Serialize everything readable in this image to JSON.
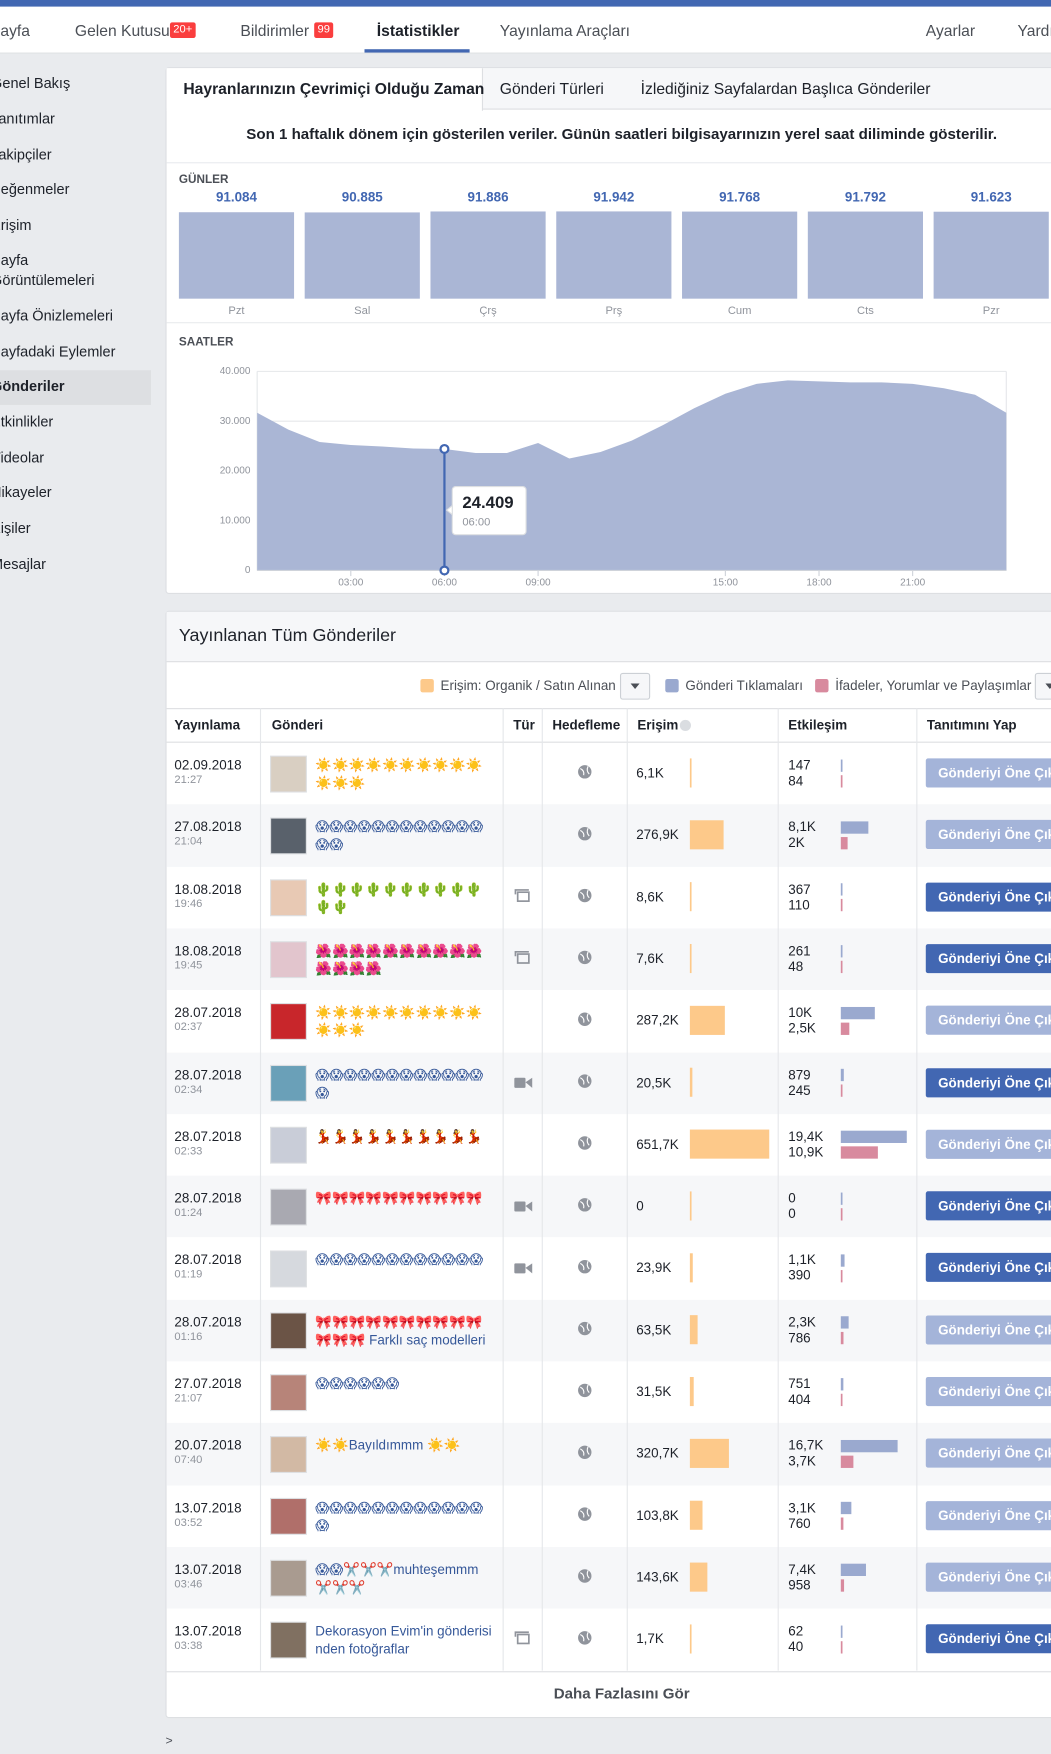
{
  "nav": {
    "items": [
      {
        "label": "Sayfa"
      },
      {
        "label": "Gelen Kutusu",
        "badge": "20+"
      },
      {
        "label": "Bildirimler",
        "badge": "99"
      },
      {
        "label": "İstatistikler",
        "active": true
      },
      {
        "label": "Yayınlama Araçları"
      },
      {
        "label": "Ayarlar"
      },
      {
        "label": "Yardım"
      }
    ]
  },
  "sidebar": {
    "items": [
      "Genel Bakış",
      "Tanıtımlar",
      "Takipçiler",
      "Beğenmeler",
      "Erişim",
      "Sayfa Görüntülemeleri",
      "Sayfa Önizlemeleri",
      "Sayfadaki Eylemler",
      "Gönderiler",
      "Etkinlikler",
      "Videolar",
      "Hikayeler",
      "Kişiler",
      "Mesajlar"
    ],
    "active": 8
  },
  "tabs": {
    "items": [
      "Hayranlarınızın Çevrimiçi Olduğu Zaman",
      "Gönderi Türleri",
      "İzlediğiniz Sayfalardan Başlıca Gönderiler"
    ],
    "active": 0
  },
  "notice": "Son 1 haftalık dönem için gösterilen veriler. Günün saatleri bilgisayarınızın yerel saat diliminde gösterilir.",
  "days_chart": {
    "type": "bar",
    "label": "GÜNLER",
    "categories": [
      "Pzt",
      "Sal",
      "Çrş",
      "Prş",
      "Cum",
      "Cts",
      "Pzr"
    ],
    "values": [
      91084,
      90885,
      91886,
      91942,
      91768,
      91792,
      91623
    ],
    "value_labels": [
      "91.084",
      "90.885",
      "91.886",
      "91.942",
      "91.768",
      "91.792",
      "91.623"
    ],
    "color": "#aab6d5"
  },
  "hours_chart": {
    "type": "area",
    "label": "SAATLER",
    "x": [
      0,
      1,
      2,
      3,
      4,
      5,
      6,
      7,
      8,
      9,
      10,
      11,
      12,
      13,
      14,
      15,
      16,
      17,
      18,
      19,
      20,
      21,
      22,
      23,
      24
    ],
    "values": [
      31700,
      28300,
      25800,
      25200,
      24900,
      24500,
      24409,
      23600,
      23600,
      25600,
      22500,
      23800,
      26100,
      29200,
      32600,
      35500,
      37500,
      38200,
      38000,
      37800,
      37800,
      37500,
      36600,
      35300,
      31700
    ],
    "color": "#aab6d5",
    "xlim": [
      0,
      24
    ],
    "ylim": [
      0,
      40000
    ],
    "yticks": [
      0,
      {
        "value": 10000,
        "label": "10.000"
      },
      {
        "value": 20000,
        "label": "20.000"
      },
      {
        "value": 30000,
        "label": "30.000"
      },
      {
        "value": 40000,
        "label": "40.000"
      }
    ],
    "xticks": [
      {
        "value": 3,
        "label": "03:00"
      },
      {
        "value": 6,
        "label": "06:00"
      },
      {
        "value": 9,
        "label": "09:00"
      },
      {
        "value": 15,
        "label": "15:00"
      },
      {
        "value": 18,
        "label": "18:00"
      },
      {
        "value": 21,
        "label": "21:00"
      }
    ],
    "grid": true,
    "tooltip": {
      "index": 6,
      "value_label": "24.409",
      "label": "06:00"
    }
  },
  "posts": {
    "title": "Yayınlanan Tüm Gönderiler",
    "legend": [
      {
        "label": "Erişim: Organik / Satın Alınan",
        "color": "#fdc98a"
      },
      {
        "label": "Gönderi Tıklamaları",
        "color": "#9aa9cf"
      },
      {
        "label": "İfadeler, Yorumlar ve Paylaşımlar",
        "color": "#d88a9e"
      }
    ],
    "columns": [
      "Yayınlama",
      "Gönderi",
      "Tür",
      "Hedefleme",
      "Erişim",
      "Etkileşim",
      "Tanıtımını Yap"
    ],
    "button_label": "Gönderiyi Öne Çıkar",
    "rows": [
      {
        "date": "02.09.2018",
        "time": "21:27",
        "text": "☀️☀️☀️☀️☀️☀️☀️☀️☀️☀️☀️☀️☀️",
        "type": null,
        "reach": 6100,
        "reach_label": "6,1K",
        "clicks": 147,
        "clicks_label": "147",
        "reactions": 84,
        "reactions_label": "84",
        "button_enabled": false
      },
      {
        "date": "27.08.2018",
        "time": "21:04",
        "text": "😱😱😱😱😱😱😱😱😱😱😱😱😱😱",
        "type": null,
        "reach": 276900,
        "reach_label": "276,9K",
        "clicks": 8100,
        "clicks_label": "8,1K",
        "reactions": 2000,
        "reactions_label": "2K",
        "button_enabled": false
      },
      {
        "date": "18.08.2018",
        "time": "19:46",
        "text": "🌵🌵🌵🌵🌵🌵🌵🌵🌵🌵🌵🌵",
        "type": "album",
        "reach": 8600,
        "reach_label": "8,6K",
        "clicks": 367,
        "clicks_label": "367",
        "reactions": 110,
        "reactions_label": "110",
        "button_enabled": true
      },
      {
        "date": "18.08.2018",
        "time": "19:45",
        "text": "🌺🌺🌺🌺🌺🌺🌺🌺🌺🌺🌺🌺🌺🌺",
        "type": "album",
        "reach": 7600,
        "reach_label": "7,6K",
        "clicks": 261,
        "clicks_label": "261",
        "reactions": 48,
        "reactions_label": "48",
        "button_enabled": true
      },
      {
        "date": "28.07.2018",
        "time": "02:37",
        "text": "☀️☀️☀️☀️☀️☀️☀️☀️☀️☀️☀️☀️☀️",
        "type": null,
        "reach": 287200,
        "reach_label": "287,2K",
        "clicks": 10000,
        "clicks_label": "10K",
        "reactions": 2500,
        "reactions_label": "2,5K",
        "button_enabled": false
      },
      {
        "date": "28.07.2018",
        "time": "02:34",
        "text": "😱😱😱😱😱😱😱😱😱😱😱😱😱",
        "type": "video",
        "reach": 20500,
        "reach_label": "20,5K",
        "clicks": 879,
        "clicks_label": "879",
        "reactions": 245,
        "reactions_label": "245",
        "button_enabled": true
      },
      {
        "date": "28.07.2018",
        "time": "02:33",
        "text": "💃💃💃💃💃💃💃💃💃💃",
        "type": null,
        "reach": 651700,
        "reach_label": "651,7K",
        "clicks": 19400,
        "clicks_label": "19,4K",
        "reactions": 10900,
        "reactions_label": "10,9K",
        "button_enabled": false
      },
      {
        "date": "28.07.2018",
        "time": "01:24",
        "text": "🎀🎀🎀🎀🎀🎀🎀🎀🎀🎀",
        "type": "video",
        "reach": 0,
        "reach_label": "0",
        "clicks": 0,
        "clicks_label": "0",
        "reactions": 0,
        "reactions_label": "0",
        "button_enabled": true
      },
      {
        "date": "28.07.2018",
        "time": "01:19",
        "text": "😱😱😱😱😱😱😱😱😱😱😱😱",
        "type": "video",
        "reach": 23900,
        "reach_label": "23,9K",
        "clicks": 1100,
        "clicks_label": "1,1K",
        "reactions": 390,
        "reactions_label": "390",
        "button_enabled": true
      },
      {
        "date": "28.07.2018",
        "time": "01:16",
        "text": "🎀🎀🎀🎀🎀🎀🎀🎀🎀🎀🎀🎀🎀 Farklı saç modelleri",
        "type": null,
        "reach": 63500,
        "reach_label": "63,5K",
        "clicks": 2300,
        "clicks_label": "2,3K",
        "reactions": 786,
        "reactions_label": "786",
        "button_enabled": false
      },
      {
        "date": "27.07.2018",
        "time": "21:07",
        "text": "😱😱😱😱😱😱",
        "type": null,
        "reach": 31500,
        "reach_label": "31,5K",
        "clicks": 751,
        "clicks_label": "751",
        "reactions": 404,
        "reactions_label": "404",
        "button_enabled": false
      },
      {
        "date": "20.07.2018",
        "time": "07:40",
        "text": "☀️☀️Bayıldımmm ☀️☀️",
        "type": null,
        "reach": 320700,
        "reach_label": "320,7K",
        "clicks": 16700,
        "clicks_label": "16,7K",
        "reactions": 3700,
        "reactions_label": "3,7K",
        "button_enabled": false
      },
      {
        "date": "13.07.2018",
        "time": "03:52",
        "text": "😱😱😱😱😱😱😱😱😱😱😱😱😱",
        "type": null,
        "reach": 103800,
        "reach_label": "103,8K",
        "clicks": 3100,
        "clicks_label": "3,1K",
        "reactions": 760,
        "reactions_label": "760",
        "button_enabled": false
      },
      {
        "date": "13.07.2018",
        "time": "03:46",
        "text": "😱😱✂️✂️✂️muhteşemmm✂️✂️✂️",
        "type": null,
        "reach": 143600,
        "reach_label": "143,6K",
        "clicks": 7400,
        "clicks_label": "7,4K",
        "reactions": 958,
        "reactions_label": "958",
        "button_enabled": false
      },
      {
        "date": "13.07.2018",
        "time": "03:38",
        "text": "Dekorasyon Evim'in gönderisinden fotoğraflar",
        "type": "album",
        "reach": 1700,
        "reach_label": "1,7K",
        "clicks": 62,
        "clicks_label": "62",
        "reactions": 40,
        "reactions_label": "40",
        "button_enabled": true
      }
    ],
    "more": "Daha Fazlasını Gör"
  },
  "footer": ">"
}
